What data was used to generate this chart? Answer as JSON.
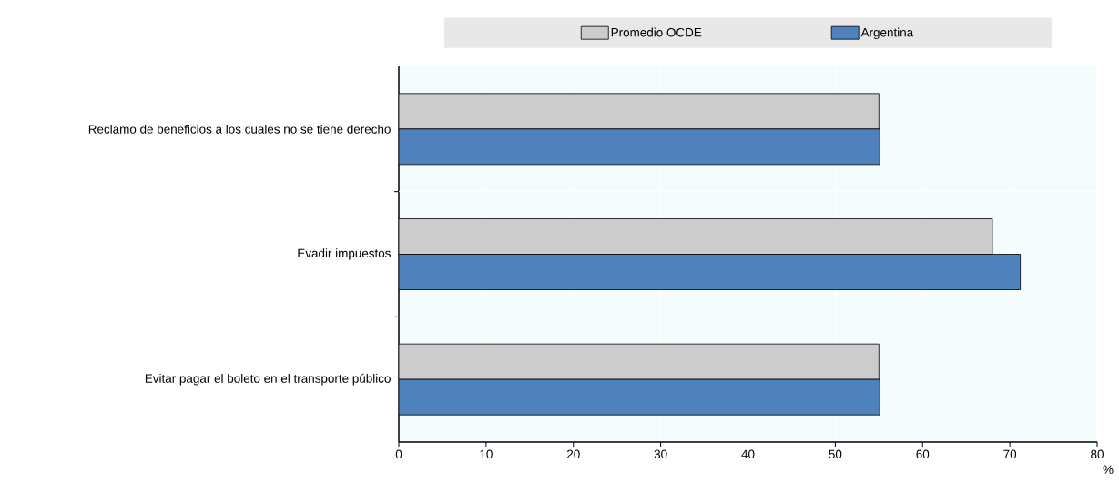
{
  "chart_data": {
    "type": "bar",
    "orientation": "horizontal",
    "xlabel": "%",
    "categories": [
      "Reclamo de beneficios a los cuales no se tiene derecho",
      "Evadir impuestos",
      "Evitar pagar el boleto en el transporte público"
    ],
    "series": [
      {
        "name": "Promedio OCDE",
        "color": "#cccccc",
        "values": [
          55.0,
          68.0,
          55.0
        ]
      },
      {
        "name": "Argentina",
        "color": "#4f81bd",
        "values": [
          55.1,
          71.2,
          55.1
        ]
      }
    ],
    "xlim": [
      0,
      80
    ],
    "xticks": [
      0,
      10,
      20,
      30,
      40,
      50,
      60,
      70,
      80
    ],
    "grid": true,
    "legend": "top"
  }
}
